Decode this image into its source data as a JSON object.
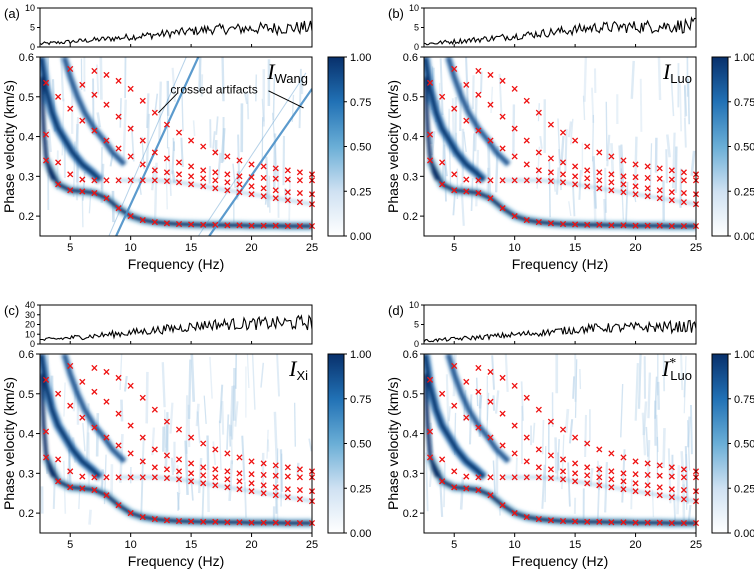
{
  "chart_data": [
    {
      "type": "heatmap",
      "panel_label": "(a)",
      "method": {
        "main": "I",
        "sub": "Wang",
        "sup": ""
      },
      "annotation": "crossed artifacts",
      "xlabel": "Frequency (Hz)",
      "ylabel": "Phase velocity (km/s)",
      "xlim": [
        2.5,
        25
      ],
      "ylim": [
        0.15,
        0.6
      ],
      "xticks": [
        5,
        10,
        15,
        20,
        25
      ],
      "yticks": [
        0.2,
        0.3,
        0.4,
        0.5,
        0.6
      ],
      "colorbar": {
        "ticks": [
          "0.00",
          "0.25",
          "0.50",
          "0.75",
          "1.00"
        ],
        "range": [
          0,
          1
        ]
      },
      "top_plot": {
        "ylim": [
          0,
          10
        ],
        "yticks": [
          "0",
          "5",
          "10"
        ],
        "start": 0.8,
        "end": 5.0
      },
      "artifacts": true
    },
    {
      "type": "heatmap",
      "panel_label": "(b)",
      "method": {
        "main": "I",
        "sub": "Luo",
        "sup": ""
      },
      "xlabel": "Frequency (Hz)",
      "ylabel": "Phase velocity (km/s)",
      "xlim": [
        2.5,
        25
      ],
      "ylim": [
        0.15,
        0.6
      ],
      "xticks": [
        5,
        10,
        15,
        20,
        25
      ],
      "yticks": [
        0.2,
        0.3,
        0.4,
        0.5,
        0.6
      ],
      "colorbar": {
        "ticks": [
          "0.00",
          "0.25",
          "0.50",
          "0.75",
          "1.00"
        ],
        "range": [
          0,
          1
        ]
      },
      "top_plot": {
        "ylim": [
          0,
          10
        ],
        "yticks": [
          "0",
          "5",
          "10"
        ],
        "start": 0.8,
        "end": 5.5
      },
      "artifacts": false
    },
    {
      "type": "heatmap",
      "panel_label": "(c)",
      "method": {
        "main": "I",
        "sub": "Xi",
        "sup": ""
      },
      "xlabel": "Frequency (Hz)",
      "ylabel": "Phase velocity (km/s)",
      "xlim": [
        2.5,
        25
      ],
      "ylim": [
        0.15,
        0.6
      ],
      "xticks": [
        5,
        10,
        15,
        20,
        25
      ],
      "yticks": [
        0.2,
        0.3,
        0.4,
        0.5,
        0.6
      ],
      "colorbar": {
        "ticks": [
          "0.00",
          "0.25",
          "0.50",
          "0.75",
          "1.00"
        ],
        "range": [
          0,
          1
        ]
      },
      "top_plot": {
        "ylim": [
          0,
          40
        ],
        "yticks": [
          "0",
          "10",
          "20",
          "30",
          "40"
        ],
        "start": 4,
        "end": 22
      },
      "artifacts": false
    },
    {
      "type": "heatmap",
      "panel_label": "(d)",
      "method": {
        "main": "I",
        "sub": "Luo",
        "sup": "*"
      },
      "xlabel": "Frequency (Hz)",
      "ylabel": "Phase velocity (km/s)",
      "xlim": [
        2.5,
        25
      ],
      "ylim": [
        0.15,
        0.6
      ],
      "xticks": [
        5,
        10,
        15,
        20,
        25
      ],
      "yticks": [
        0.2,
        0.3,
        0.4,
        0.5,
        0.6
      ],
      "colorbar": {
        "ticks": [
          "0.00",
          "0.25",
          "0.50",
          "0.75",
          "1.00"
        ],
        "range": [
          0,
          1
        ]
      },
      "top_plot": {
        "ylim": [
          0,
          10
        ],
        "yticks": [
          "0",
          "5",
          "10"
        ],
        "start": 0.8,
        "end": 4.5
      },
      "artifacts": false
    }
  ],
  "reference_modes": [
    {
      "name": "fundamental",
      "f": [
        3,
        4,
        5,
        6,
        7,
        8,
        9,
        10,
        11,
        12,
        13,
        14,
        15,
        16,
        17,
        18,
        19,
        20,
        21,
        22,
        23,
        24,
        25
      ],
      "v": [
        0.34,
        0.28,
        0.265,
        0.262,
        0.258,
        0.245,
        0.22,
        0.2,
        0.19,
        0.185,
        0.182,
        0.18,
        0.179,
        0.178,
        0.178,
        0.177,
        0.177,
        0.176,
        0.176,
        0.176,
        0.175,
        0.175,
        0.175
      ]
    },
    {
      "name": "first-higher",
      "f": [
        3,
        4,
        5,
        6,
        7,
        8,
        9,
        10,
        11,
        12,
        13,
        14,
        15,
        16,
        17,
        18,
        19,
        20,
        21,
        22,
        23,
        24,
        25
      ],
      "v": [
        0.405,
        0.335,
        0.305,
        0.292,
        0.29,
        0.29,
        0.29,
        0.29,
        0.29,
        0.29,
        0.288,
        0.285,
        0.28,
        0.275,
        0.27,
        0.265,
        0.26,
        0.255,
        0.25,
        0.245,
        0.24,
        0.235,
        0.23
      ]
    },
    {
      "name": "second-higher",
      "f": [
        3,
        4,
        5,
        6,
        7,
        8,
        9,
        10,
        11,
        12,
        13,
        14,
        15,
        16,
        17,
        18,
        19,
        20,
        21,
        22,
        23,
        24,
        25
      ],
      "v": [
        0.535,
        0.5,
        0.47,
        0.44,
        0.415,
        0.39,
        0.37,
        0.35,
        0.33,
        0.315,
        0.31,
        0.305,
        0.3,
        0.295,
        0.29,
        0.285,
        0.28,
        0.275,
        0.27,
        0.265,
        0.26,
        0.258,
        0.255
      ]
    },
    {
      "name": "third-higher",
      "f": [
        5,
        6,
        7,
        8,
        9,
        10,
        11,
        12,
        13,
        14,
        15,
        16,
        17,
        18,
        19,
        20,
        21,
        22,
        23,
        24,
        25
      ],
      "v": [
        0.57,
        0.53,
        0.505,
        0.48,
        0.45,
        0.42,
        0.39,
        0.36,
        0.345,
        0.335,
        0.325,
        0.315,
        0.31,
        0.305,
        0.3,
        0.298,
        0.296,
        0.294,
        0.292,
        0.29,
        0.29
      ]
    },
    {
      "name": "fourth-higher",
      "f": [
        7,
        8,
        9,
        10,
        11,
        12,
        13,
        14,
        15,
        16,
        17,
        18,
        19,
        20,
        21,
        22,
        23,
        24,
        25
      ],
      "v": [
        0.565,
        0.555,
        0.54,
        0.52,
        0.49,
        0.46,
        0.43,
        0.41,
        0.39,
        0.375,
        0.36,
        0.35,
        0.34,
        0.33,
        0.325,
        0.32,
        0.315,
        0.31,
        0.305
      ]
    }
  ],
  "colors": {
    "cmap_low": "#ffffff",
    "cmap_mid": "#6aaed6",
    "cmap_high": "#08306b",
    "marker": "#ee1111",
    "artifact": "#4a90c8"
  }
}
